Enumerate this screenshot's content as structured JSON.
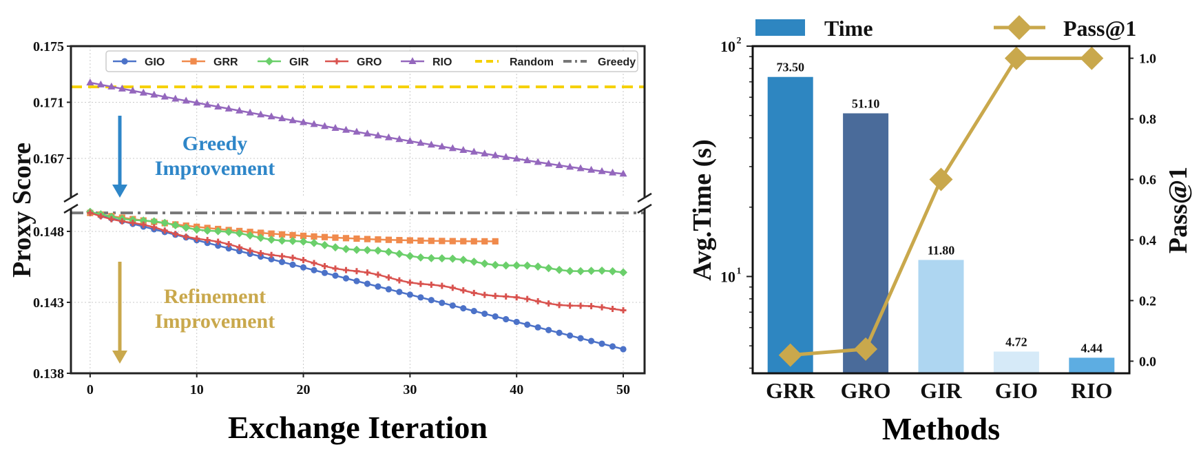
{
  "chart_data": [
    {
      "type": "line",
      "xlabel": "Exchange Iteration",
      "ylabel": "Proxy Score",
      "x_ticks": [
        "0",
        "10",
        "20",
        "30",
        "40",
        "50"
      ],
      "y_ticks_top": [
        "0.167",
        "0.171",
        "0.175"
      ],
      "y_ticks_bottom": [
        "0.138",
        "0.143",
        "0.148"
      ],
      "xlim": [
        -1.8,
        52
      ],
      "ylim_top": [
        0.1642,
        0.175
      ],
      "ylim_bottom": [
        0.138,
        0.1496
      ],
      "grid": true,
      "legend_position": "top",
      "annotations": [
        {
          "line1": "Greedy",
          "line2": "Improvement",
          "color": "#2E86C8"
        },
        {
          "line1": "Refinement",
          "line2": "Improvement",
          "color": "#C9A84C"
        }
      ],
      "series": [
        {
          "name": "GIO",
          "color": "#4C72C8",
          "marker": "circle",
          "start": 0.1493,
          "end": 0.1397,
          "n": 50,
          "shape": "linear"
        },
        {
          "name": "GRR",
          "color": "#F08A4C",
          "marker": "square",
          "start": 0.1493,
          "end": 0.1473,
          "n": 38,
          "shape": "concave"
        },
        {
          "name": "GIR",
          "color": "#6BCF6B",
          "marker": "diamond",
          "start": 0.1493,
          "end": 0.1451,
          "n": 50,
          "shape": "mild"
        },
        {
          "name": "GRO",
          "color": "#D9534F",
          "marker": "plus",
          "start": 0.1493,
          "end": 0.1425,
          "n": 50,
          "shape": "mild"
        },
        {
          "name": "RIO",
          "color": "#9467BD",
          "marker": "triangle",
          "start": 0.1724,
          "end": 0.1659,
          "n": 50,
          "shape": "slightly-concave"
        }
      ],
      "baselines": [
        {
          "name": "Random",
          "value": 0.1721,
          "color": "#F5D000",
          "style": "dashed"
        },
        {
          "name": "Greedy",
          "value": 0.1493,
          "color": "#777777",
          "style": "dashdot"
        }
      ]
    },
    {
      "type": "bar",
      "xlabel": "Methods",
      "ylabel": "Avg.Time (s)",
      "y2label": "Pass@1",
      "yscale": "log",
      "ylim": [
        3.8,
        100
      ],
      "y_ticks": [
        {
          "base": "10",
          "exp": "1",
          "value": 10
        },
        {
          "base": "10",
          "exp": "2",
          "value": 100
        }
      ],
      "y2lim": [
        -0.04,
        1.04
      ],
      "y2_ticks": [
        "0.0",
        "0.2",
        "0.4",
        "0.6",
        "0.8",
        "1.0"
      ],
      "categories": [
        "GRR",
        "GRO",
        "GIR",
        "GIO",
        "RIO"
      ],
      "values": [
        73.5,
        51.1,
        11.8,
        4.72,
        4.44
      ],
      "value_labels": [
        "73.50",
        "51.10",
        "11.80",
        "4.72",
        "4.44"
      ],
      "bar_colors": [
        "#2E86C1",
        "#4A6B9A",
        "#AED6F1",
        "#D6EAF8",
        "#5DADE2"
      ],
      "legend": [
        {
          "name": "Time",
          "color": "#2E86C1"
        },
        {
          "name": "Pass@1",
          "color": "#C9A84C"
        }
      ],
      "line": {
        "name": "Pass@1",
        "color": "#C9A84C",
        "values": [
          0.02,
          0.04,
          0.6,
          1.0,
          1.0
        ]
      }
    }
  ]
}
